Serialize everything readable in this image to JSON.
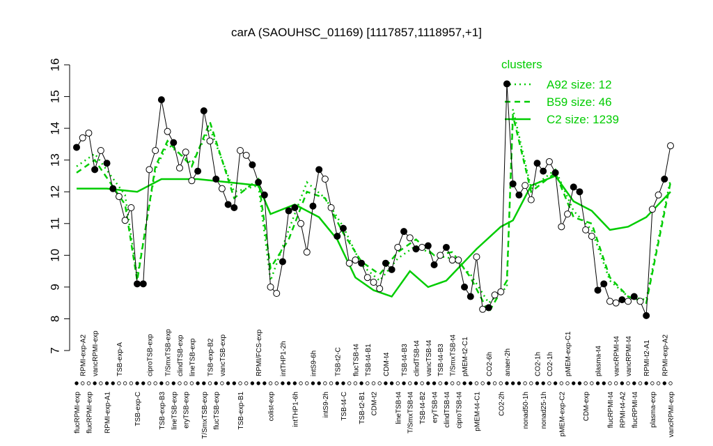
{
  "chart_data": {
    "type": "line",
    "title": "carA (SAOUHSC_01169) [1117857,1118957,+1]",
    "ylim": [
      7,
      16
    ],
    "yticks": [
      7,
      8,
      9,
      10,
      11,
      12,
      13,
      14,
      15,
      16
    ],
    "categories": [
      "flucRPMI-exp",
      "RPMI-exp-A2",
      "flucRPMI-exp",
      "vancRPMI-exp",
      null,
      "RPMI-exp-A1",
      null,
      "TSB-exp-A",
      null,
      null,
      "TSB-exp-C",
      null,
      "ciproTSB-exp",
      null,
      "TSB-exp-B3",
      "T/SmxTSB-exp",
      "lineTSB-exp",
      "clindTSB-exp",
      "eryTSB-exp",
      "lineTSB-exp",
      null,
      "T/SmxTSB-exp",
      "TSB-exp-B2",
      "flucTSB-exp",
      "vancTSB-exp",
      null,
      null,
      "TSB-exp-B1",
      null,
      null,
      "RPMI/FCS-exp",
      null,
      "colist-exp",
      null,
      "intTHP1-2h",
      null,
      "intTHP1-6h",
      null,
      null,
      "intS9-6h",
      null,
      "intS9-2h",
      null,
      "TSB-t2-C",
      "TSB-t4-C",
      null,
      "flucTSB-t4",
      "TSB-t2-B1",
      "TSB-t4-B1",
      "CDM-t2",
      null,
      "CDM-t4",
      null,
      "lineTSB-t4",
      "TSB-t4-B3",
      "T/SmxTSB-t4",
      "clindTSB-t4",
      "TSB-t4-B2",
      "vancTSB-t4",
      "eryTSB-t4",
      "TSB-t4-B3",
      "clindTSB-t4",
      "T/SmxTSB-t4",
      "ciproTSB-t4",
      "pMEM-t2-C1",
      null,
      "pMEM-t4-C1",
      null,
      "CO2-6h",
      null,
      "CO2-2h",
      "anaer-2h",
      null,
      null,
      "nonad50-1h",
      null,
      "CO2-1h",
      "nonad25-1h",
      "CO2-1h",
      null,
      "pMEM-exp-C2",
      "pMEM-exp-C1",
      null,
      null,
      "CDM-exp",
      null,
      "plasma-t4",
      null,
      "flucRPMI-t4",
      "vancRPMI-t4",
      "RPMI-t4-A2",
      "vancRPMI-t4",
      "flucRPMI-t4",
      null,
      "RPMI-t2-A1",
      "plasma-exp",
      null,
      "RPMI-exp-A2",
      "vancRPMI-exp"
    ],
    "values": [
      13.4,
      13.7,
      13.85,
      12.7,
      13.3,
      12.9,
      12.1,
      11.85,
      11.1,
      11.5,
      9.1,
      9.1,
      12.7,
      13.3,
      14.9,
      13.9,
      13.55,
      12.75,
      13.25,
      12.35,
      12.65,
      14.55,
      13.6,
      12.4,
      12.1,
      11.6,
      11.5,
      13.3,
      13.15,
      12.85,
      12.3,
      11.9,
      9.0,
      8.8,
      9.8,
      11.4,
      11.5,
      11.0,
      10.1,
      11.55,
      12.7,
      12.4,
      11.5,
      10.6,
      10.85,
      9.75,
      9.85,
      9.75,
      9.3,
      9.15,
      8.95,
      9.75,
      9.55,
      10.25,
      10.75,
      10.55,
      10.2,
      10.25,
      10.3,
      9.7,
      10.0,
      10.25,
      9.85,
      9.85,
      9.0,
      8.7,
      9.95,
      8.3,
      8.35,
      8.75,
      8.85,
      15.4,
      12.25,
      11.9,
      12.2,
      11.75,
      12.9,
      12.65,
      12.95,
      12.6,
      10.9,
      11.3,
      12.15,
      12.0,
      10.8,
      10.6,
      8.9,
      9.1,
      8.55,
      8.5,
      8.6,
      8.55,
      8.7,
      8.55,
      8.1,
      11.45,
      11.9,
      12.4,
      13.45
    ],
    "filled": [
      true,
      false,
      false,
      true,
      false,
      true,
      true,
      false,
      false,
      false,
      true,
      true,
      false,
      false,
      true,
      false,
      true,
      false,
      false,
      false,
      true,
      true,
      false,
      true,
      false,
      true,
      true,
      false,
      false,
      true,
      true,
      true,
      false,
      false,
      true,
      true,
      true,
      false,
      false,
      true,
      true,
      false,
      false,
      true,
      true,
      false,
      false,
      true,
      false,
      false,
      false,
      true,
      true,
      false,
      true,
      false,
      true,
      false,
      true,
      true,
      false,
      true,
      false,
      false,
      true,
      true,
      false,
      false,
      true,
      false,
      false,
      true,
      true,
      true,
      false,
      false,
      true,
      true,
      false,
      true,
      false,
      false,
      true,
      true,
      false,
      false,
      true,
      true,
      false,
      false,
      true,
      false,
      true,
      false,
      true,
      false,
      false,
      true,
      false
    ],
    "legend_title": "clusters",
    "series": [
      {
        "name": "A92 size: 12",
        "color": "#00cc00",
        "style": "dotted",
        "x": [
          0,
          3,
          8,
          10,
          13,
          15,
          19,
          22,
          26,
          30,
          32,
          35,
          38,
          41,
          44,
          47,
          50,
          53,
          56,
          59,
          62,
          65,
          68,
          71,
          72,
          75,
          79,
          82,
          85,
          88,
          91,
          94,
          98
        ],
        "values": [
          12.8,
          13.2,
          11.9,
          9.3,
          12.7,
          13.5,
          12.9,
          14.0,
          12.0,
          12.2,
          9.2,
          10.8,
          12.3,
          11.8,
          10.9,
          9.7,
          9.2,
          9.9,
          10.3,
          10.0,
          9.9,
          9.4,
          8.5,
          9.0,
          14.6,
          12.1,
          12.7,
          11.4,
          10.8,
          9.2,
          8.7,
          8.6,
          12.4
        ]
      },
      {
        "name": "B59 size: 46",
        "color": "#00cc00",
        "style": "dashed",
        "x": [
          0,
          3,
          8,
          10,
          13,
          15,
          19,
          22,
          26,
          30,
          32,
          35,
          38,
          41,
          44,
          47,
          50,
          53,
          56,
          59,
          62,
          65,
          68,
          71,
          72,
          75,
          79,
          82,
          85,
          88,
          91,
          94,
          98
        ],
        "values": [
          12.6,
          13.0,
          11.6,
          9.2,
          12.8,
          13.6,
          12.8,
          14.2,
          11.8,
          12.4,
          9.6,
          10.5,
          12.0,
          11.8,
          10.7,
          9.8,
          9.4,
          10.1,
          10.5,
          10.0,
          10.1,
          9.3,
          8.2,
          9.2,
          14.4,
          12.0,
          12.6,
          11.2,
          11.0,
          9.3,
          8.7,
          8.5,
          12.3
        ]
      },
      {
        "name": "C2 size: 1239",
        "color": "#00cc00",
        "style": "solid",
        "x": [
          0,
          5,
          10,
          14,
          20,
          25,
          30,
          32,
          36,
          40,
          43,
          46,
          49,
          52,
          55,
          58,
          61,
          64,
          66,
          70,
          72,
          75,
          79,
          82,
          85,
          88,
          91,
          94,
          98
        ],
        "values": [
          12.1,
          12.1,
          12.0,
          12.4,
          12.4,
          12.3,
          12.2,
          11.3,
          11.6,
          11.2,
          10.5,
          9.3,
          8.9,
          8.7,
          9.5,
          9.0,
          9.2,
          9.8,
          10.2,
          10.9,
          11.1,
          12.2,
          12.5,
          11.7,
          11.4,
          10.8,
          10.9,
          11.2,
          12.0
        ]
      }
    ]
  }
}
